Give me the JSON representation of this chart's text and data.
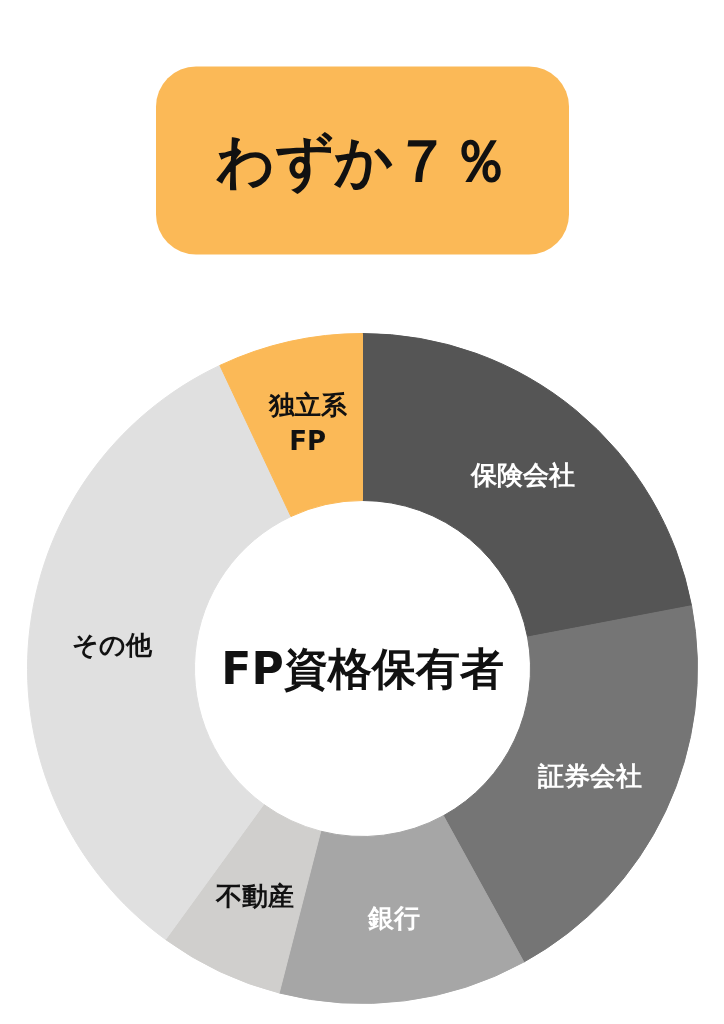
{
  "chart_data": {
    "type": "donut",
    "title": "FP資格保有者",
    "categories": [
      "保険会社",
      "証券会社",
      "銀行",
      "不動産",
      "その他",
      "独立系\nFP"
    ],
    "values": [
      22,
      20,
      12,
      6,
      33,
      7
    ],
    "colors": [
      "#555555",
      "#757575",
      "#a6a6a6",
      "#d0cfcd",
      "#e0e0e0",
      "#fbb957"
    ],
    "annotations": [
      "わずか７％"
    ]
  }
}
